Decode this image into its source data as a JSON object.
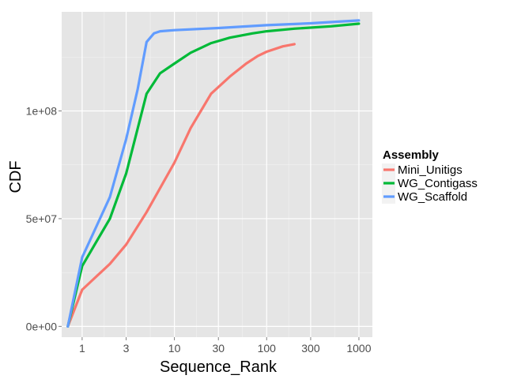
{
  "chart_data": {
    "type": "line",
    "title": "",
    "xlabel": "Sequence_Rank",
    "ylabel": "CDF",
    "x_scale": "log10",
    "xlim": [
      0.6,
      1400
    ],
    "ylim": [
      -5000000,
      146000000
    ],
    "x_ticks": [
      {
        "value": 1,
        "label": "1"
      },
      {
        "value": 3,
        "label": "3"
      },
      {
        "value": 10,
        "label": "10"
      },
      {
        "value": 30,
        "label": "30"
      },
      {
        "value": 100,
        "label": "100"
      },
      {
        "value": 300,
        "label": "300"
      },
      {
        "value": 1000,
        "label": "1000"
      }
    ],
    "y_ticks": [
      {
        "value": 0,
        "label": "0e+00"
      },
      {
        "value": 50000000,
        "label": "5e+07"
      },
      {
        "value": 100000000,
        "label": "1e+08"
      }
    ],
    "grid": true,
    "legend": {
      "title": "Assembly",
      "position": "right"
    },
    "series": [
      {
        "name": "Mini_Unitigs",
        "color": "#F8766D",
        "points": [
          [
            0.7,
            0
          ],
          [
            1,
            17000000
          ],
          [
            2,
            29000000
          ],
          [
            3,
            38000000
          ],
          [
            5,
            53000000
          ],
          [
            10,
            76000000
          ],
          [
            15,
            92000000
          ],
          [
            25,
            108000000
          ],
          [
            40,
            116000000
          ],
          [
            60,
            122000000
          ],
          [
            80,
            125500000
          ],
          [
            100,
            127500000
          ],
          [
            150,
            130000000
          ],
          [
            200,
            131000000
          ]
        ]
      },
      {
        "name": "WG_Contigass",
        "color": "#00BA38",
        "points": [
          [
            0.7,
            0
          ],
          [
            1,
            28000000
          ],
          [
            2,
            50000000
          ],
          [
            3,
            71000000
          ],
          [
            5,
            108000000
          ],
          [
            7,
            117500000
          ],
          [
            10,
            122000000
          ],
          [
            15,
            127000000
          ],
          [
            25,
            131500000
          ],
          [
            40,
            134000000
          ],
          [
            70,
            136000000
          ],
          [
            100,
            137000000
          ],
          [
            200,
            138200000
          ],
          [
            500,
            139300000
          ],
          [
            1000,
            140500000
          ]
        ]
      },
      {
        "name": "WG_Scaffold",
        "color": "#619CFF",
        "points": [
          [
            0.7,
            0
          ],
          [
            1,
            32000000
          ],
          [
            2,
            60000000
          ],
          [
            3,
            87000000
          ],
          [
            4,
            110000000
          ],
          [
            5,
            132000000
          ],
          [
            6,
            136000000
          ],
          [
            7,
            137000000
          ],
          [
            10,
            137500000
          ],
          [
            30,
            138500000
          ],
          [
            100,
            139800000
          ],
          [
            300,
            140700000
          ],
          [
            1000,
            142000000
          ]
        ]
      }
    ]
  }
}
